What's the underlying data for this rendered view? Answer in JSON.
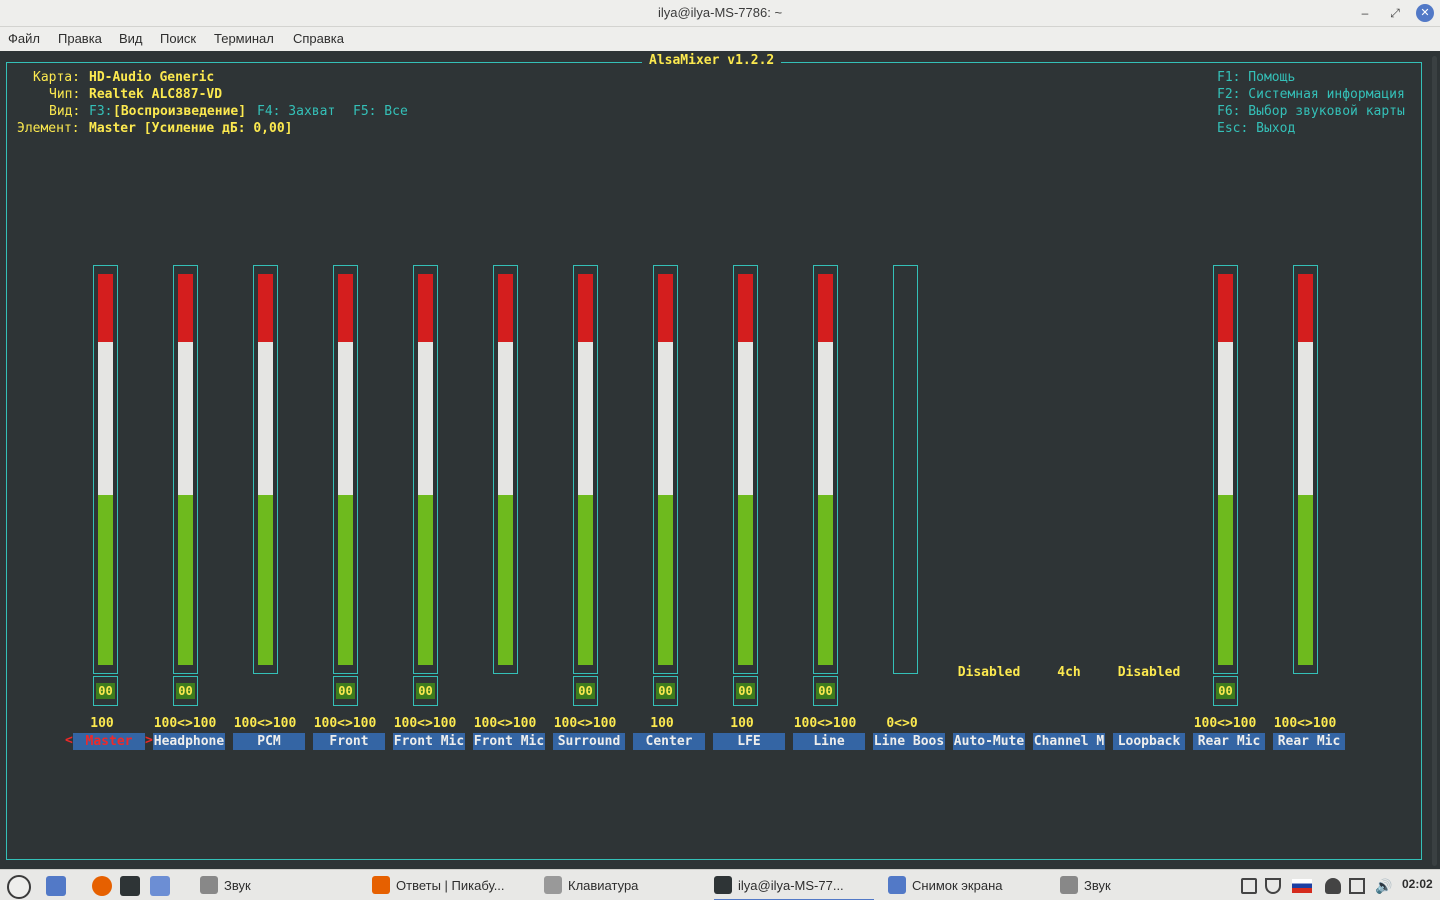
{
  "window": {
    "title": "ilya@ilya-MS-7786: ~",
    "min_icon": "‒",
    "max_icon": "⤢",
    "close_icon": "✕"
  },
  "menu": [
    "Файл",
    "Правка",
    "Вид",
    "Поиск",
    "Терминал",
    "Справка"
  ],
  "mixer": {
    "title": "AlsaMixer v1.2.2",
    "card_label": "Карта:",
    "card_value": "HD-Audio Generic",
    "chip_label": "Чип:",
    "chip_value": "Realtek ALC887-VD",
    "view_label": "Вид:",
    "view_f3": "F3:",
    "view_current": "[Воспроизведение]",
    "view_f4": "F4: Захват",
    "view_f5": "F5: Все",
    "item_label": "Элемент:",
    "item_value": "Master [Усиление дБ: 0,00]",
    "help": [
      "F1: Помощь",
      "F2: Системная информация",
      "F6: Выбор звуковой карты",
      "Esc: Выход"
    ],
    "mute_text": "00",
    "channels": [
      {
        "name": "Master",
        "volume": "100",
        "level": 1.0,
        "mute": true,
        "selected": true
      },
      {
        "name": "Headphone",
        "volume": "100<>100",
        "level": 1.0,
        "mute": true
      },
      {
        "name": "PCM",
        "volume": "100<>100",
        "level": 1.0,
        "mute": false
      },
      {
        "name": "Front",
        "volume": "100<>100",
        "level": 1.0,
        "mute": true
      },
      {
        "name": "Front Mic",
        "volume": "100<>100",
        "level": 1.0,
        "mute": true
      },
      {
        "name": "Front Mic",
        "volume": "100<>100",
        "level": 1.0,
        "mute": false
      },
      {
        "name": "Surround",
        "volume": "100<>100",
        "level": 1.0,
        "mute": true
      },
      {
        "name": "Center",
        "volume": "100",
        "level": 1.0,
        "mute": true
      },
      {
        "name": "LFE",
        "volume": "100",
        "level": 1.0,
        "mute": true
      },
      {
        "name": "Line",
        "volume": "100<>100",
        "level": 1.0,
        "mute": true
      },
      {
        "name": "Line Boos",
        "volume": "0<>0",
        "level": 0.0,
        "mute": false
      },
      {
        "name": "Auto-Mute",
        "enum": "Disabled"
      },
      {
        "name": "Channel M",
        "enum": "4ch"
      },
      {
        "name": "Loopback",
        "enum": "Disabled"
      },
      {
        "name": "Rear Mic",
        "volume": "100<>100",
        "level": 1.0,
        "mute": true
      },
      {
        "name": "Rear Mic",
        "volume": "100<>100",
        "level": 1.0,
        "mute": false
      }
    ]
  },
  "taskbar": {
    "items": [
      {
        "label": "Звук",
        "icon": "sound-settings-icon",
        "color": "#888888"
      },
      {
        "label": "Ответы | Пикабу...",
        "icon": "firefox-icon",
        "color": "#e66000"
      },
      {
        "label": "Клавиатура",
        "icon": "keyboard-settings-icon",
        "color": "#999999"
      },
      {
        "label": "ilya@ilya-MS-77...",
        "icon": "terminal-icon",
        "color": "#2e3436",
        "active": true
      },
      {
        "label": "Снимок экрана",
        "icon": "screenshot-icon",
        "color": "#5279c7"
      },
      {
        "label": "Звук",
        "icon": "sound-settings-icon",
        "color": "#888888"
      }
    ],
    "clock": "02:02"
  }
}
